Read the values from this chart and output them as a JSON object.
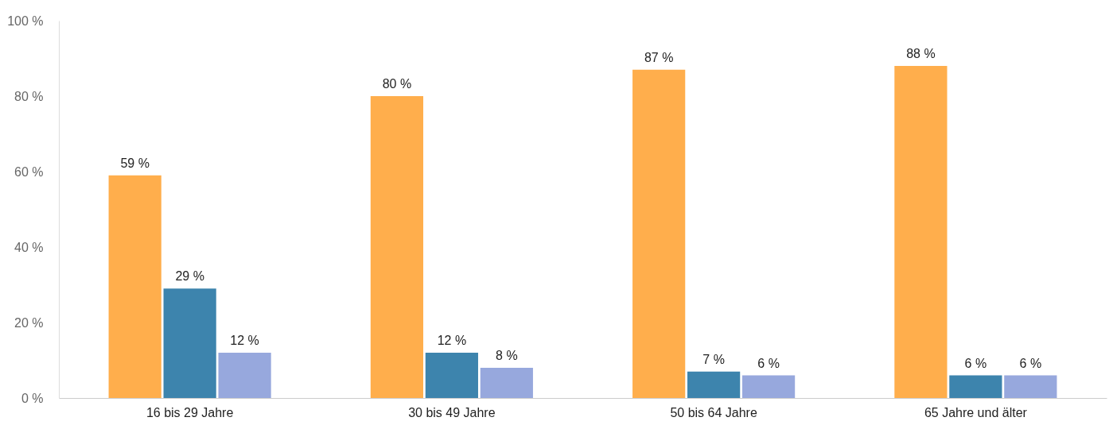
{
  "chart_data": {
    "type": "bar",
    "categories": [
      "16 bis 29 Jahre",
      "30 bis 49 Jahre",
      "50 bis 64 Jahre",
      "65 Jahre und älter"
    ],
    "series": [
      {
        "color": "#ffae4c",
        "values": [
          59,
          80,
          87,
          88
        ],
        "value_labels": [
          "59 %",
          "80 %",
          "87 %",
          "88 %"
        ]
      },
      {
        "color": "#3d84ad",
        "values": [
          29,
          12,
          7,
          6
        ],
        "value_labels": [
          "29 %",
          "12 %",
          "7 %",
          "6 %"
        ]
      },
      {
        "color": "#97a8dd",
        "values": [
          12,
          8,
          6,
          6
        ],
        "value_labels": [
          "12 %",
          "8 %",
          "6 %",
          "6 %"
        ]
      }
    ],
    "ylim": [
      0,
      100
    ],
    "yticks": [
      {
        "value": 0,
        "label": "0 %"
      },
      {
        "value": 20,
        "label": "20 %"
      },
      {
        "value": 40,
        "label": "40 %"
      },
      {
        "value": 60,
        "label": "60 %"
      },
      {
        "value": 80,
        "label": "80 %"
      },
      {
        "value": 100,
        "label": "100 %"
      }
    ],
    "grid": false,
    "legend": false
  }
}
